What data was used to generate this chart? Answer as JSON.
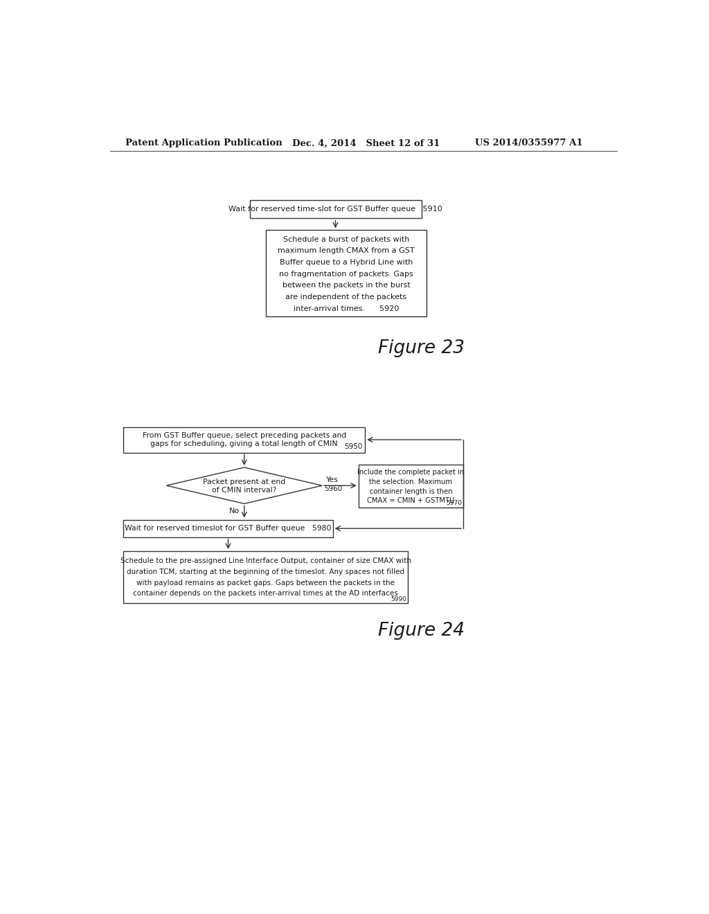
{
  "bg_color": "#ffffff",
  "header_left": "Patent Application Publication",
  "header_mid": "Dec. 4, 2014   Sheet 12 of 31",
  "header_right": "US 2014/0355977 A1",
  "fig23_label": "Figure 23",
  "fig24_label": "Figure 24",
  "box5910_text": "Wait for reserved time-slot for GST Buffer queue   5910",
  "box5920_lines": [
    "Schedule a burst of packets with",
    "maximum length CMAX from a GST",
    "Buffer queue to a Hybrid Line with",
    "no fragmentation of packets. Gaps",
    "between the packets in the burst",
    "are independent of the packets",
    "inter-arrival times.      5920"
  ],
  "box5950_lines": [
    "From GST Buffer queue, select preceding packets and",
    "gaps for scheduling, giving a total length of CMIN",
    "5950"
  ],
  "diamond5960_line1": "Packet present at end",
  "diamond5960_line2": "of CMIN interval?",
  "diamond5960_label": "5960",
  "yes_label": "Yes",
  "no_label": "No",
  "box5970_lines": [
    "Include the complete packet in",
    "the selection. Maximum",
    "container length is then",
    "CMAX = CMIN + GSTMTU"
  ],
  "box5970_sub": "5970",
  "box5980_text": "Wait for reserved timeslot for GST Buffer queue   5980",
  "box5990_lines": [
    "Schedule to the pre-assigned Line Interface Output, container of size CMAX with",
    "duration TCM, starting at the beginning of the timeslot. Any spaces not filled",
    "with payload remains as packet gaps. Gaps between the packets in the",
    "container depends on the packets inter-arrival times at the AD interfaces"
  ],
  "box5990_sub": "5990",
  "text_color": "#1a1a1a",
  "box_edge_color": "#333333",
  "line_color": "#333333"
}
